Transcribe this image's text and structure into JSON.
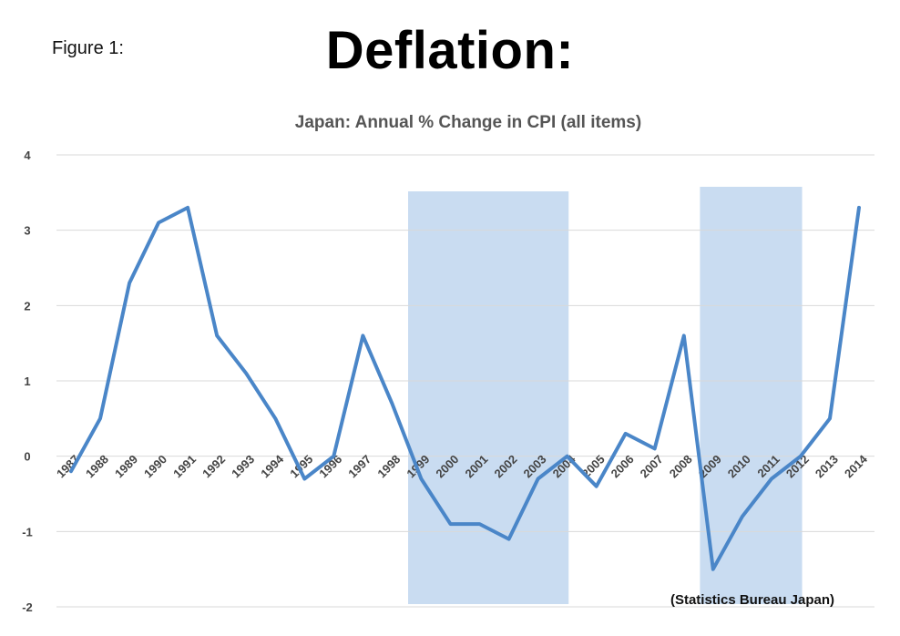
{
  "header": {
    "figure_label": "Figure 1:",
    "title": "Deflation:"
  },
  "chart_data": {
    "type": "line",
    "title": "Japan: Annual % Change in CPI (all items)",
    "source_note": "(Statistics Bureau Japan)",
    "xlabel": "",
    "ylabel": "",
    "ylim": [
      -2,
      4
    ],
    "yticks": [
      -2,
      -1,
      0,
      1,
      2,
      3,
      4
    ],
    "grid": true,
    "line_color": "#4a86c8",
    "shade_color": "#c9dcf1",
    "categories": [
      "1987",
      "1988",
      "1989",
      "1990",
      "1991",
      "1992",
      "1993",
      "1994",
      "1995",
      "1996",
      "1997",
      "1998",
      "1999",
      "2000",
      "2001",
      "2002",
      "2003",
      "2004",
      "2005",
      "2006",
      "2007",
      "2008",
      "2009",
      "2010",
      "2011",
      "2012",
      "2013",
      "2014"
    ],
    "series": [
      {
        "values": [
          -0.2,
          0.5,
          2.3,
          3.1,
          3.3,
          1.6,
          1.1,
          0.5,
          -0.3,
          0.0,
          1.6,
          0.7,
          -0.3,
          -0.9,
          -0.9,
          -1.1,
          -0.3,
          0.0,
          -0.4,
          0.3,
          0.1,
          1.6,
          -1.5,
          -0.8,
          -0.3,
          0.0,
          0.5,
          3.3
        ]
      }
    ],
    "shaded_regions": [
      {
        "from": "1999",
        "to": "2004"
      },
      {
        "from": "2009",
        "to": "2012"
      }
    ]
  }
}
